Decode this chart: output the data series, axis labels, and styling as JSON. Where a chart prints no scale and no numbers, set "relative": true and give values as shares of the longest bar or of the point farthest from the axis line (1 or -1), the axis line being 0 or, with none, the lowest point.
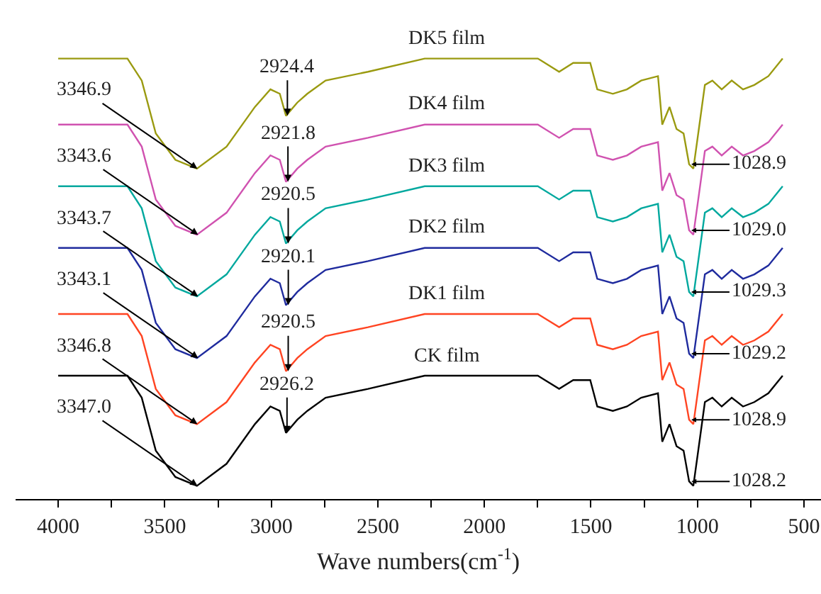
{
  "chart_data": {
    "type": "line",
    "relative": true,
    "xlabel": "Wave numbers(cm$^{-1}$)",
    "xlim": [
      4200,
      420
    ],
    "xticks": [
      4000,
      {
        "value": 3750,
        "label": null
      },
      3500,
      {
        "value": 3250,
        "label": null
      },
      3000,
      {
        "value": 2750,
        "label": null
      },
      2500,
      {
        "value": 2250,
        "label": null
      },
      2000,
      {
        "value": 1750,
        "label": null
      },
      1500,
      {
        "value": 1250,
        "label": null
      },
      1000,
      {
        "value": 750,
        "label": null
      },
      500
    ],
    "x": [
      4000,
      3675,
      3608,
      3542,
      3450,
      3349,
      3210,
      3077,
      3004,
      2960,
      2931,
      2878,
      2831,
      2745,
      2546,
      2280,
      1749,
      1649,
      1583,
      1503,
      1470,
      1397,
      1331,
      1264,
      1185,
      1165,
      1131,
      1098,
      1065,
      1039,
      1019,
      999,
      965,
      930,
      886,
      839,
      786,
      733,
      667,
      600
    ],
    "series": [
      {
        "name": "CK film",
        "color": "#000000",
        "values": [
          0.28,
          0.28,
          0.23,
          0.11,
          0.05,
          0.03,
          0.08,
          0.17,
          0.21,
          0.2,
          0.15,
          0.18,
          0.2,
          0.23,
          0.25,
          0.28,
          0.28,
          0.25,
          0.27,
          0.27,
          0.21,
          0.2,
          0.21,
          0.23,
          0.24,
          0.13,
          0.17,
          0.12,
          0.11,
          0.04,
          0.03,
          0.1,
          0.22,
          0.23,
          0.21,
          0.23,
          0.21,
          0.22,
          0.24,
          0.28
        ]
      },
      {
        "name": "DK1 film",
        "color": "#ff4422",
        "values": [
          0.42,
          0.42,
          0.37,
          0.25,
          0.19,
          0.17,
          0.22,
          0.31,
          0.35,
          0.34,
          0.29,
          0.32,
          0.34,
          0.37,
          0.39,
          0.42,
          0.42,
          0.39,
          0.41,
          0.41,
          0.35,
          0.34,
          0.35,
          0.37,
          0.38,
          0.27,
          0.31,
          0.26,
          0.25,
          0.18,
          0.17,
          0.24,
          0.36,
          0.37,
          0.35,
          0.37,
          0.35,
          0.36,
          0.38,
          0.42
        ]
      },
      {
        "name": "DK2 film",
        "color": "#1f2b9e",
        "values": [
          0.57,
          0.57,
          0.52,
          0.4,
          0.34,
          0.32,
          0.37,
          0.46,
          0.5,
          0.49,
          0.44,
          0.47,
          0.49,
          0.52,
          0.54,
          0.57,
          0.57,
          0.54,
          0.56,
          0.56,
          0.5,
          0.49,
          0.5,
          0.52,
          0.53,
          0.42,
          0.46,
          0.41,
          0.4,
          0.33,
          0.32,
          0.39,
          0.51,
          0.52,
          0.5,
          0.52,
          0.5,
          0.51,
          0.53,
          0.57
        ]
      },
      {
        "name": "DK3 film",
        "color": "#00a89e",
        "values": [
          0.71,
          0.71,
          0.66,
          0.54,
          0.48,
          0.46,
          0.51,
          0.6,
          0.64,
          0.63,
          0.58,
          0.61,
          0.63,
          0.66,
          0.68,
          0.71,
          0.71,
          0.68,
          0.7,
          0.7,
          0.64,
          0.63,
          0.64,
          0.66,
          0.67,
          0.56,
          0.6,
          0.55,
          0.54,
          0.47,
          0.46,
          0.53,
          0.65,
          0.66,
          0.64,
          0.66,
          0.64,
          0.65,
          0.67,
          0.71
        ]
      },
      {
        "name": "DK4 film",
        "color": "#d052b0",
        "values": [
          0.85,
          0.85,
          0.8,
          0.68,
          0.62,
          0.6,
          0.65,
          0.74,
          0.78,
          0.77,
          0.72,
          0.75,
          0.77,
          0.8,
          0.82,
          0.85,
          0.85,
          0.82,
          0.84,
          0.84,
          0.78,
          0.77,
          0.78,
          0.8,
          0.81,
          0.7,
          0.74,
          0.69,
          0.68,
          0.61,
          0.6,
          0.67,
          0.79,
          0.8,
          0.78,
          0.8,
          0.78,
          0.79,
          0.81,
          0.85
        ]
      },
      {
        "name": "DK5 film",
        "color": "#9a9a10",
        "values": [
          1.0,
          1.0,
          0.95,
          0.83,
          0.77,
          0.75,
          0.8,
          0.89,
          0.93,
          0.92,
          0.87,
          0.9,
          0.92,
          0.95,
          0.97,
          1.0,
          1.0,
          0.97,
          0.99,
          0.99,
          0.93,
          0.92,
          0.93,
          0.95,
          0.96,
          0.85,
          0.89,
          0.84,
          0.83,
          0.76,
          0.75,
          0.82,
          0.94,
          0.95,
          0.93,
          0.95,
          0.93,
          0.94,
          0.96,
          1.0
        ]
      }
    ],
    "annotations": [
      {
        "text": "3347.0",
        "x": 3347.0,
        "y": 0.03
      },
      {
        "text": "2926.2",
        "x": 2926.2,
        "y": 0.15
      },
      {
        "text": "1028.2",
        "x": 1028.2,
        "y": 0.04
      },
      {
        "text": "3346.8",
        "x": 3346.8,
        "y": 0.17
      },
      {
        "text": "2920.5",
        "x": 2920.5,
        "y": 0.29
      },
      {
        "text": "1028.9",
        "x": 1028.9,
        "y": 0.18
      },
      {
        "text": "3343.1",
        "x": 3343.1,
        "y": 0.32
      },
      {
        "text": "2920.1",
        "x": 2920.1,
        "y": 0.44
      },
      {
        "text": "1029.2",
        "x": 1029.2,
        "y": 0.33
      },
      {
        "text": "3343.7",
        "x": 3343.7,
        "y": 0.46
      },
      {
        "text": "2920.5",
        "x": 2920.5,
        "y": 0.58
      },
      {
        "text": "1029.3",
        "x": 1029.3,
        "y": 0.47
      },
      {
        "text": "3343.6",
        "x": 3343.6,
        "y": 0.6
      },
      {
        "text": "2921.8",
        "x": 2921.8,
        "y": 0.72
      },
      {
        "text": "1029.0",
        "x": 1029.0,
        "y": 0.61
      },
      {
        "text": "3346.9",
        "x": 3346.9,
        "y": 0.75
      },
      {
        "text": "2924.4",
        "x": 2924.4,
        "y": 0.87
      },
      {
        "text": "1028.9",
        "x": 1028.9,
        "y": 0.76
      }
    ]
  }
}
